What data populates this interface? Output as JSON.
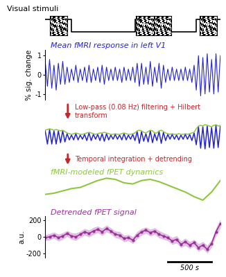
{
  "chart_data": [
    {
      "type": "step",
      "title": "Visual stimuli",
      "x": [
        0,
        300,
        1025,
        1250,
        1275,
        1400,
        1725,
        2000
      ],
      "values": [
        1,
        0,
        1,
        0,
        1,
        0,
        1,
        1
      ],
      "color": "#000000",
      "xlim": [
        0,
        2000
      ],
      "ylim": [
        -0.3,
        1.3
      ],
      "tick_labels": false
    },
    {
      "type": "line",
      "title": "Mean fMRI response in left V1",
      "ylabel": "% sig. change",
      "x": [
        0,
        25,
        50,
        75,
        100,
        125,
        150,
        175,
        200,
        225,
        250,
        275,
        300,
        325,
        350,
        375,
        400,
        425,
        450,
        475,
        500,
        525,
        550,
        575,
        600,
        625,
        650,
        675,
        700,
        725,
        750,
        775,
        800,
        825,
        850,
        875,
        900,
        925,
        950,
        975,
        1000,
        1025,
        1050,
        1075,
        1100,
        1125,
        1150,
        1175,
        1200,
        1225,
        1250,
        1275,
        1300,
        1325,
        1350,
        1375,
        1400,
        1425,
        1450,
        1475,
        1500,
        1525,
        1550,
        1575,
        1600,
        1625,
        1650,
        1675,
        1700,
        1725,
        1750,
        1775,
        1800,
        1825,
        1850,
        1875,
        1900,
        1925,
        1950,
        1975,
        2000
      ],
      "values": [
        0.7,
        -0.6,
        0.8,
        -0.7,
        0.5,
        -0.8,
        0.6,
        -0.5,
        0.7,
        -0.5,
        0.4,
        -0.4,
        0.3,
        -0.3,
        0.5,
        -0.4,
        0.3,
        -0.3,
        0.4,
        -0.4,
        0.5,
        -0.4,
        0.3,
        -0.3,
        0.4,
        -0.4,
        0.5,
        -0.5,
        0.4,
        -0.3,
        0.3,
        -0.3,
        0.4,
        -0.3,
        0.3,
        -0.4,
        0.4,
        -0.3,
        0.3,
        -0.3,
        0.4,
        -0.4,
        0.6,
        -0.6,
        0.6,
        -0.5,
        0.4,
        -0.5,
        0.7,
        -0.6,
        0.4,
        -0.4,
        0.6,
        -0.7,
        0.5,
        -0.4,
        0.3,
        -0.3,
        0.4,
        -0.3,
        0.3,
        -0.3,
        0.3,
        -0.3,
        0.4,
        -0.3,
        0.3,
        -0.4,
        0.5,
        -0.8,
        1.0,
        -1.1,
        0.9,
        -1.0,
        1.1,
        -0.9,
        0.8,
        -1.0,
        1.1,
        -0.9,
        1.0
      ],
      "color": "#2323d2",
      "xlim": [
        0,
        2000
      ],
      "ylim": [
        -1.3,
        1.3
      ],
      "yticks": [
        -1,
        0,
        1
      ],
      "tick_labels": "y"
    },
    {
      "type": "line",
      "annotation": "Low-pass (0.08 Hz) filtering + Hilbert transform",
      "x": [
        0,
        25,
        50,
        75,
        100,
        125,
        150,
        175,
        200,
        225,
        250,
        275,
        300,
        325,
        350,
        375,
        400,
        425,
        450,
        475,
        500,
        525,
        550,
        575,
        600,
        625,
        650,
        675,
        700,
        725,
        750,
        775,
        800,
        825,
        850,
        875,
        900,
        925,
        950,
        975,
        1000,
        1025,
        1050,
        1075,
        1100,
        1125,
        1150,
        1175,
        1200,
        1225,
        1250,
        1275,
        1300,
        1325,
        1350,
        1375,
        1400,
        1425,
        1450,
        1475,
        1500,
        1525,
        1550,
        1575,
        1600,
        1625,
        1650,
        1675,
        1700,
        1725,
        1750,
        1775,
        1800,
        1825,
        1850,
        1875,
        1900,
        1925,
        1950,
        1975,
        2000
      ],
      "series": [
        {
          "color": "#2323d2",
          "values": [
            0.45,
            -0.5,
            0.55,
            -0.5,
            0.45,
            -0.5,
            0.45,
            -0.4,
            0.45,
            -0.35,
            0.25,
            -0.2,
            0.15,
            -0.2,
            0.25,
            -0.2,
            0.15,
            -0.15,
            0.2,
            -0.25,
            0.3,
            -0.25,
            0.2,
            -0.15,
            0.2,
            -0.25,
            0.25,
            -0.3,
            0.25,
            -0.2,
            0.15,
            -0.15,
            0.2,
            -0.15,
            0.15,
            -0.2,
            0.25,
            -0.2,
            0.15,
            -0.15,
            0.2,
            -0.25,
            0.4,
            -0.45,
            0.4,
            -0.3,
            0.25,
            -0.35,
            0.45,
            -0.4,
            0.25,
            -0.25,
            0.4,
            -0.45,
            0.35,
            -0.25,
            0.2,
            -0.15,
            0.2,
            -0.15,
            0.15,
            -0.2,
            0.15,
            -0.15,
            0.2,
            -0.15,
            0.2,
            -0.25,
            0.3,
            -0.55,
            0.75,
            -0.8,
            0.75,
            -0.85,
            0.8,
            -0.75,
            0.7,
            -0.8,
            0.85,
            -0.75,
            0.8
          ]
        },
        {
          "color": "#8dc63f",
          "values": [
            0.5,
            0.55,
            0.6,
            0.55,
            0.5,
            0.55,
            0.5,
            0.45,
            0.5,
            0.4,
            0.3,
            0.25,
            0.2,
            0.25,
            0.3,
            0.25,
            0.2,
            0.2,
            0.25,
            0.3,
            0.35,
            0.3,
            0.25,
            0.2,
            0.25,
            0.3,
            0.3,
            0.35,
            0.3,
            0.25,
            0.2,
            0.2,
            0.25,
            0.2,
            0.2,
            0.25,
            0.3,
            0.25,
            0.2,
            0.2,
            0.25,
            0.3,
            0.45,
            0.5,
            0.45,
            0.35,
            0.3,
            0.4,
            0.5,
            0.45,
            0.3,
            0.3,
            0.45,
            0.5,
            0.4,
            0.3,
            0.25,
            0.2,
            0.25,
            0.2,
            0.2,
            0.25,
            0.2,
            0.2,
            0.25,
            0.2,
            0.25,
            0.3,
            0.35,
            0.6,
            0.8,
            0.85,
            0.8,
            0.9,
            0.85,
            0.8,
            0.75,
            0.85,
            0.9,
            0.8,
            0.85
          ]
        }
      ],
      "xlim": [
        0,
        2000
      ],
      "ylim": [
        -1.0,
        1.0
      ],
      "tick_labels": false
    },
    {
      "type": "line",
      "title": "fMRI-modeled fPET dynamics",
      "annotation": "Temporal integration + detrending",
      "x": [
        0,
        100,
        200,
        300,
        400,
        500,
        600,
        700,
        800,
        900,
        1000,
        1100,
        1200,
        1300,
        1400,
        1500,
        1600,
        1700,
        1800,
        1900,
        2000
      ],
      "values": [
        0,
        5,
        15,
        25,
        30,
        45,
        60,
        70,
        65,
        50,
        45,
        60,
        65,
        55,
        40,
        25,
        10,
        -10,
        -25,
        10,
        60
      ],
      "color": "#8dc63f",
      "xlim": [
        0,
        2000
      ],
      "ylim": [
        -40,
        80
      ],
      "tick_labels": false
    },
    {
      "type": "line",
      "title": "Detrended fPET signal",
      "ylabel": "a.u.",
      "x": [
        0,
        50,
        100,
        150,
        200,
        250,
        300,
        350,
        400,
        450,
        500,
        550,
        600,
        650,
        700,
        750,
        800,
        850,
        900,
        950,
        1000,
        1050,
        1100,
        1150,
        1200,
        1250,
        1300,
        1350,
        1400,
        1450,
        1500,
        1550,
        1600,
        1650,
        1700,
        1750,
        1800,
        1850,
        1900,
        1950,
        2000
      ],
      "values": [
        -10,
        0,
        20,
        -10,
        10,
        40,
        10,
        0,
        30,
        60,
        40,
        70,
        90,
        60,
        100,
        70,
        30,
        20,
        -20,
        -10,
        -40,
        20,
        60,
        80,
        50,
        70,
        30,
        10,
        -10,
        -50,
        -30,
        -90,
        -60,
        -100,
        -70,
        -130,
        -100,
        -150,
        -80,
        60,
        160
      ],
      "error": [
        35,
        40,
        38,
        42,
        40,
        36,
        40,
        45,
        38,
        40,
        42,
        44,
        40,
        46,
        42,
        38,
        40,
        44,
        40,
        38,
        42,
        45,
        40,
        38,
        42,
        40,
        44,
        40,
        38,
        42,
        45,
        40,
        44,
        42,
        40,
        46,
        44,
        48,
        45,
        50,
        55
      ],
      "color": "#9b309b",
      "marker": "o",
      "xlim": [
        0,
        2000
      ],
      "ylim": [
        -250,
        250
      ],
      "yticks": [
        -200,
        0,
        200
      ],
      "tick_labels": "y",
      "scale_bar": {
        "value": 500,
        "label": "500 s"
      }
    }
  ]
}
